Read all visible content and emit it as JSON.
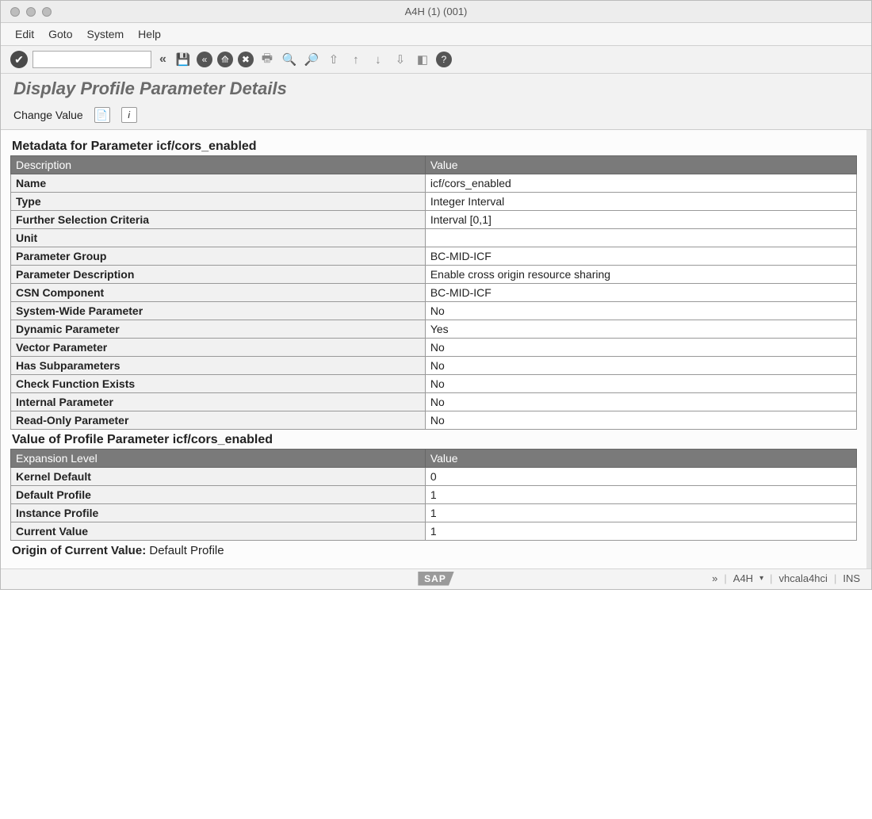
{
  "window": {
    "title": "A4H (1) (001)"
  },
  "menu": {
    "items": [
      "Edit",
      "Goto",
      "System",
      "Help"
    ]
  },
  "toolbar": {
    "command_value": ""
  },
  "page": {
    "title": "Display Profile Parameter Details"
  },
  "subtoolbar": {
    "change_value": "Change Value"
  },
  "section1": {
    "heading": "Metadata for Parameter icf/cors_enabled",
    "col1": "Description",
    "col2": "Value",
    "rows": [
      {
        "label": "Name",
        "value": "icf/cors_enabled"
      },
      {
        "label": "Type",
        "value": "Integer Interval"
      },
      {
        "label": "Further Selection Criteria",
        "value": "Interval [0,1]"
      },
      {
        "label": "Unit",
        "value": ""
      },
      {
        "label": "Parameter Group",
        "value": "BC-MID-ICF"
      },
      {
        "label": "Parameter Description",
        "value": "Enable cross origin resource sharing"
      },
      {
        "label": "CSN Component",
        "value": "BC-MID-ICF"
      },
      {
        "label": "System-Wide Parameter",
        "value": "No"
      },
      {
        "label": "Dynamic Parameter",
        "value": "Yes"
      },
      {
        "label": "Vector Parameter",
        "value": "No"
      },
      {
        "label": "Has Subparameters",
        "value": "No"
      },
      {
        "label": "Check Function Exists",
        "value": "No"
      },
      {
        "label": "Internal Parameter",
        "value": "No"
      },
      {
        "label": "Read-Only Parameter",
        "value": "No"
      }
    ]
  },
  "section2": {
    "heading": "Value of Profile Parameter icf/cors_enabled",
    "col1": "Expansion Level",
    "col2": "Value",
    "rows": [
      {
        "label": "Kernel Default",
        "value": "0"
      },
      {
        "label": "Default Profile",
        "value": "1"
      },
      {
        "label": "Instance Profile",
        "value": "1"
      },
      {
        "label": "Current Value",
        "value": "1"
      }
    ]
  },
  "footer": {
    "origin_label": "Origin of Current Value",
    "origin_value": "Default Profile"
  },
  "status": {
    "sap": "SAP",
    "sys": "A4H",
    "host": "vhcala4hci",
    "mode": "INS"
  },
  "colors": {
    "header_bg": "#7a7a7a",
    "header_fg": "#ffffff",
    "row_label_bg": "#f1f1f1",
    "border": "#999999"
  }
}
